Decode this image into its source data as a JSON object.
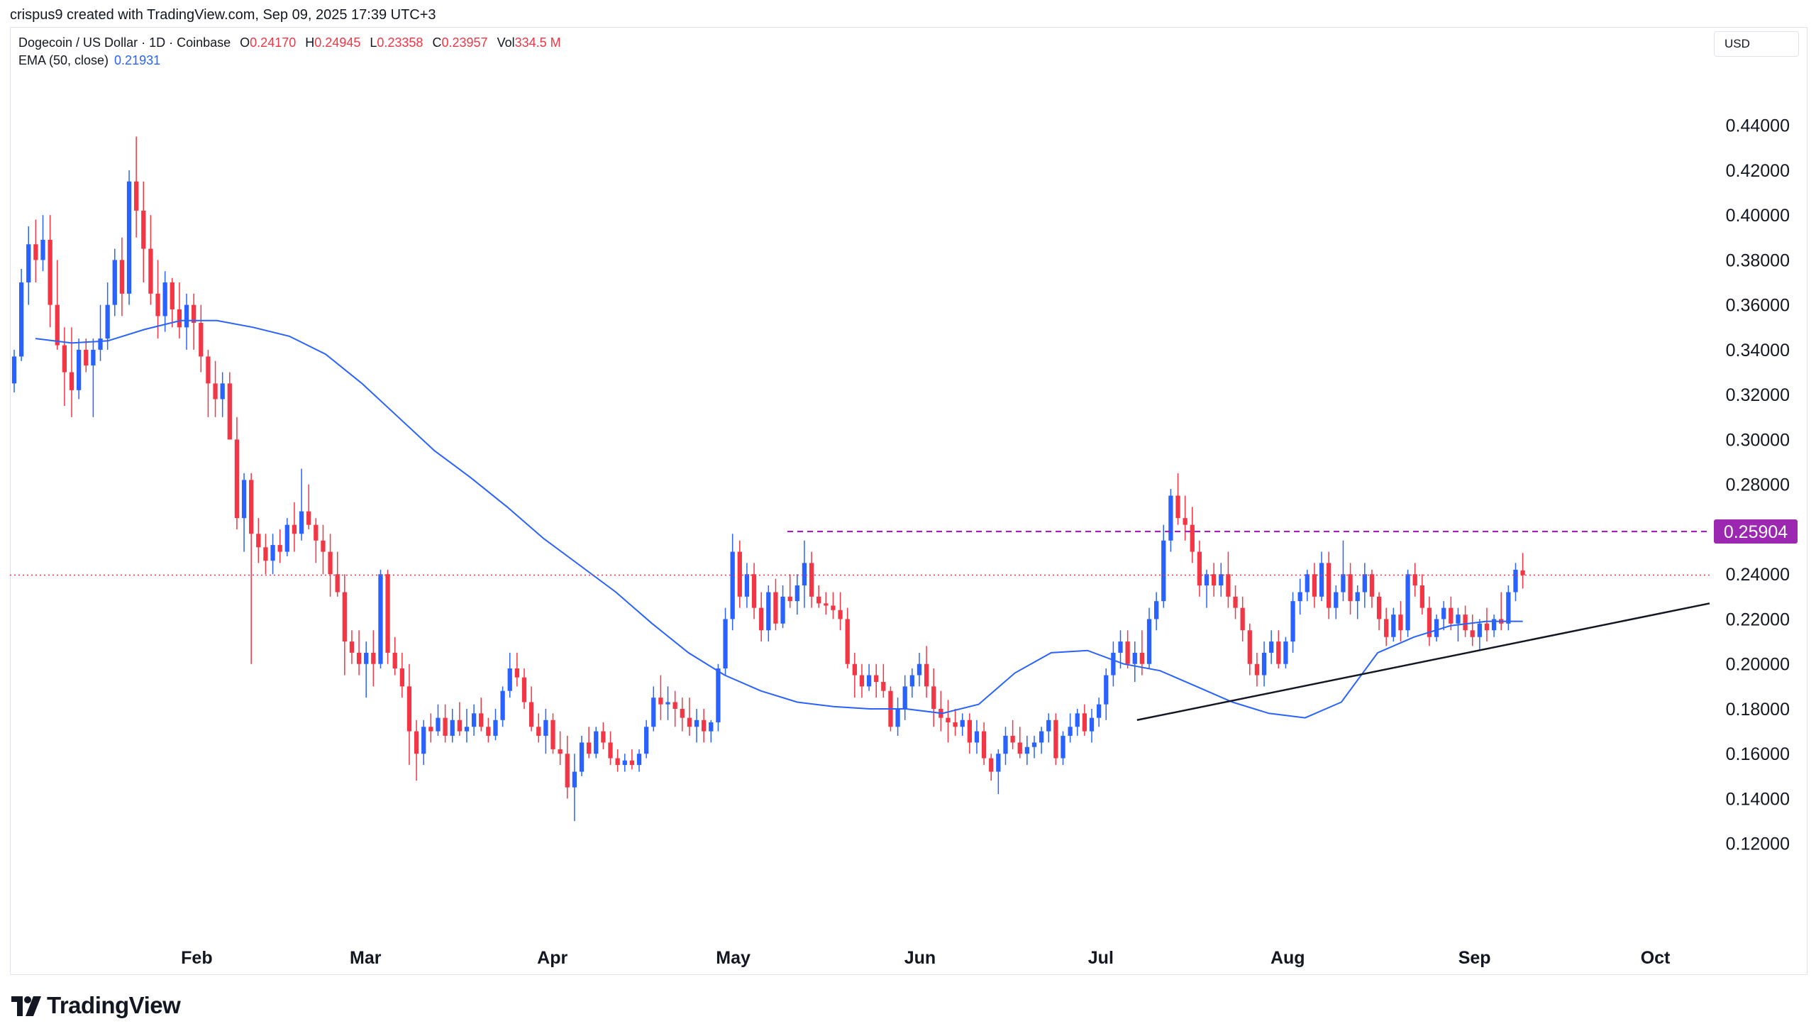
{
  "header": {
    "attribution": "crispus9 created with TradingView.com, Sep 09, 2025 17:39 UTC+3"
  },
  "legend": {
    "symbol": "Dogecoin / US Dollar · 1D · Coinbase",
    "open_label": "O",
    "open": "0.24170",
    "high_label": "H",
    "high": "0.24945",
    "low_label": "L",
    "low": "0.23358",
    "close_label": "C",
    "close": "0.23957",
    "vol_label": "Vol",
    "vol": "334.5 M",
    "ema_label": "EMA (50, close)",
    "ema_value": "0.21931"
  },
  "currency": "USD",
  "price_badge": "0.25904",
  "brand": {
    "logo_text": "TradingView",
    "logo_icon": "tradingview-logo-icon"
  },
  "colors": {
    "up": "#2962ff",
    "down": "#f23645",
    "ema": "#2962ff",
    "resistance": "#9c27b0",
    "badge": "#9c27b0",
    "trendline": "#131722",
    "last_price": "#f23645"
  },
  "chart_data": {
    "type": "candlestick",
    "title": "Dogecoin / US Dollar · 1D · Coinbase",
    "xlabel": "",
    "ylabel": "USD",
    "ylim": [
      0.1,
      0.45
    ],
    "y_ticks": [
      "0.44000",
      "0.42000",
      "0.40000",
      "0.38000",
      "0.36000",
      "0.34000",
      "0.32000",
      "0.30000",
      "0.28000",
      "0.26000",
      "0.24000",
      "0.22000",
      "0.20000",
      "0.18000",
      "0.16000",
      "0.14000",
      "0.12000"
    ],
    "x_ticks": [
      "Feb",
      "Mar",
      "Apr",
      "May",
      "Jun",
      "Jul",
      "Aug",
      "Sep",
      "Oct"
    ],
    "x_tick_dates": [
      "2025-02-01",
      "2025-03-01",
      "2025-04-01",
      "2025-05-01",
      "2025-06-01",
      "2025-07-01",
      "2025-08-01",
      "2025-09-01",
      "2025-10-01"
    ],
    "x_range": [
      "2025-01-01",
      "2025-10-10"
    ],
    "candle_dates": [
      "2025-01-01",
      "2025-09-09"
    ],
    "last_price": 0.23957,
    "resistance": {
      "price": 0.25904,
      "from": "2025-05-10",
      "to": "2025-10-10"
    },
    "trendline": {
      "from": [
        "2025-07-07",
        0.175
      ],
      "to": [
        "2025-10-10",
        0.227
      ]
    },
    "ema": [
      0.345,
      0.343,
      0.344,
      0.349,
      0.353,
      0.353,
      0.35,
      0.346,
      0.338,
      0.325,
      0.31,
      0.295,
      0.283,
      0.27,
      0.256,
      0.244,
      0.232,
      0.218,
      0.205,
      0.195,
      0.188,
      0.183,
      0.181,
      0.18,
      0.18,
      0.178,
      0.182,
      0.196,
      0.205,
      0.206,
      0.2,
      0.197,
      0.19,
      0.183,
      0.178,
      0.176,
      0.183,
      0.205,
      0.212,
      0.217,
      0.219,
      0.219
    ],
    "ohlc": [
      [
        0.325,
        0.34,
        0.321,
        0.337
      ],
      [
        0.337,
        0.376,
        0.335,
        0.37
      ],
      [
        0.37,
        0.395,
        0.36,
        0.387
      ],
      [
        0.387,
        0.398,
        0.37,
        0.38
      ],
      [
        0.38,
        0.4,
        0.375,
        0.389
      ],
      [
        0.389,
        0.4,
        0.35,
        0.36
      ],
      [
        0.36,
        0.38,
        0.34,
        0.342
      ],
      [
        0.342,
        0.35,
        0.315,
        0.33
      ],
      [
        0.33,
        0.35,
        0.31,
        0.322
      ],
      [
        0.322,
        0.345,
        0.318,
        0.34
      ],
      [
        0.34,
        0.345,
        0.33,
        0.333
      ],
      [
        0.333,
        0.345,
        0.31,
        0.34
      ],
      [
        0.34,
        0.36,
        0.335,
        0.345
      ],
      [
        0.345,
        0.37,
        0.34,
        0.36
      ],
      [
        0.36,
        0.385,
        0.355,
        0.38
      ],
      [
        0.38,
        0.39,
        0.355,
        0.365
      ],
      [
        0.365,
        0.42,
        0.36,
        0.415
      ],
      [
        0.415,
        0.435,
        0.39,
        0.402
      ],
      [
        0.402,
        0.415,
        0.37,
        0.385
      ],
      [
        0.385,
        0.4,
        0.36,
        0.365
      ],
      [
        0.365,
        0.38,
        0.345,
        0.355
      ],
      [
        0.355,
        0.375,
        0.348,
        0.37
      ],
      [
        0.37,
        0.372,
        0.35,
        0.358
      ],
      [
        0.358,
        0.37,
        0.345,
        0.35
      ],
      [
        0.35,
        0.365,
        0.34,
        0.36
      ],
      [
        0.36,
        0.365,
        0.34,
        0.352
      ],
      [
        0.352,
        0.36,
        0.33,
        0.337
      ],
      [
        0.337,
        0.34,
        0.31,
        0.325
      ],
      [
        0.325,
        0.335,
        0.31,
        0.318
      ],
      [
        0.318,
        0.33,
        0.31,
        0.325
      ],
      [
        0.325,
        0.33,
        0.3,
        0.3
      ],
      [
        0.3,
        0.31,
        0.26,
        0.265
      ],
      [
        0.265,
        0.285,
        0.25,
        0.282
      ],
      [
        0.282,
        0.285,
        0.2,
        0.258
      ],
      [
        0.258,
        0.265,
        0.245,
        0.252
      ],
      [
        0.252,
        0.258,
        0.24,
        0.246
      ],
      [
        0.246,
        0.258,
        0.24,
        0.253
      ],
      [
        0.253,
        0.26,
        0.245,
        0.25
      ],
      [
        0.25,
        0.265,
        0.248,
        0.262
      ],
      [
        0.262,
        0.272,
        0.25,
        0.258
      ],
      [
        0.258,
        0.287,
        0.255,
        0.268
      ],
      [
        0.268,
        0.28,
        0.26,
        0.262
      ],
      [
        0.262,
        0.265,
        0.245,
        0.255
      ],
      [
        0.255,
        0.262,
        0.24,
        0.25
      ],
      [
        0.25,
        0.258,
        0.23,
        0.24
      ],
      [
        0.24,
        0.25,
        0.23,
        0.232
      ],
      [
        0.232,
        0.24,
        0.195,
        0.21
      ],
      [
        0.21,
        0.215,
        0.2,
        0.205
      ],
      [
        0.205,
        0.215,
        0.195,
        0.2
      ],
      [
        0.2,
        0.21,
        0.185,
        0.205
      ],
      [
        0.205,
        0.215,
        0.19,
        0.2
      ],
      [
        0.2,
        0.242,
        0.198,
        0.24
      ],
      [
        0.24,
        0.242,
        0.2,
        0.205
      ],
      [
        0.205,
        0.212,
        0.195,
        0.198
      ],
      [
        0.198,
        0.205,
        0.185,
        0.19
      ],
      [
        0.19,
        0.2,
        0.155,
        0.17
      ],
      [
        0.17,
        0.175,
        0.148,
        0.16
      ],
      [
        0.16,
        0.175,
        0.155,
        0.172
      ],
      [
        0.172,
        0.178,
        0.165,
        0.17
      ],
      [
        0.17,
        0.182,
        0.168,
        0.176
      ],
      [
        0.176,
        0.182,
        0.165,
        0.168
      ],
      [
        0.168,
        0.18,
        0.165,
        0.175
      ],
      [
        0.175,
        0.183,
        0.168,
        0.17
      ],
      [
        0.17,
        0.18,
        0.165,
        0.172
      ],
      [
        0.172,
        0.182,
        0.168,
        0.178
      ],
      [
        0.178,
        0.185,
        0.17,
        0.172
      ],
      [
        0.172,
        0.176,
        0.165,
        0.168
      ],
      [
        0.168,
        0.18,
        0.166,
        0.175
      ],
      [
        0.175,
        0.19,
        0.172,
        0.188
      ],
      [
        0.188,
        0.205,
        0.185,
        0.198
      ],
      [
        0.198,
        0.205,
        0.19,
        0.194
      ],
      [
        0.194,
        0.198,
        0.18,
        0.183
      ],
      [
        0.183,
        0.19,
        0.17,
        0.172
      ],
      [
        0.172,
        0.178,
        0.165,
        0.168
      ],
      [
        0.168,
        0.18,
        0.16,
        0.175
      ],
      [
        0.175,
        0.178,
        0.16,
        0.162
      ],
      [
        0.162,
        0.17,
        0.155,
        0.16
      ],
      [
        0.16,
        0.168,
        0.14,
        0.145
      ],
      [
        0.145,
        0.16,
        0.13,
        0.152
      ],
      [
        0.152,
        0.168,
        0.15,
        0.165
      ],
      [
        0.165,
        0.172,
        0.158,
        0.16
      ],
      [
        0.16,
        0.172,
        0.158,
        0.17
      ],
      [
        0.17,
        0.174,
        0.162,
        0.165
      ],
      [
        0.165,
        0.17,
        0.155,
        0.158
      ],
      [
        0.158,
        0.162,
        0.152,
        0.155
      ],
      [
        0.155,
        0.16,
        0.152,
        0.157
      ],
      [
        0.157,
        0.162,
        0.153,
        0.155
      ],
      [
        0.155,
        0.162,
        0.152,
        0.16
      ],
      [
        0.16,
        0.175,
        0.158,
        0.172
      ],
      [
        0.172,
        0.19,
        0.17,
        0.185
      ],
      [
        0.185,
        0.195,
        0.175,
        0.182
      ],
      [
        0.182,
        0.19,
        0.175,
        0.183
      ],
      [
        0.183,
        0.188,
        0.172,
        0.18
      ],
      [
        0.18,
        0.185,
        0.17,
        0.176
      ],
      [
        0.176,
        0.185,
        0.168,
        0.172
      ],
      [
        0.172,
        0.18,
        0.165,
        0.175
      ],
      [
        0.175,
        0.18,
        0.165,
        0.17
      ],
      [
        0.17,
        0.175,
        0.165,
        0.174
      ],
      [
        0.174,
        0.2,
        0.17,
        0.198
      ],
      [
        0.198,
        0.225,
        0.195,
        0.22
      ],
      [
        0.22,
        0.258,
        0.215,
        0.25
      ],
      [
        0.25,
        0.255,
        0.225,
        0.23
      ],
      [
        0.23,
        0.245,
        0.225,
        0.24
      ],
      [
        0.24,
        0.245,
        0.22,
        0.225
      ],
      [
        0.225,
        0.232,
        0.21,
        0.215
      ],
      [
        0.215,
        0.235,
        0.21,
        0.232
      ],
      [
        0.232,
        0.238,
        0.215,
        0.218
      ],
      [
        0.218,
        0.235,
        0.216,
        0.23
      ],
      [
        0.23,
        0.24,
        0.225,
        0.228
      ],
      [
        0.228,
        0.24,
        0.222,
        0.235
      ],
      [
        0.235,
        0.255,
        0.225,
        0.245
      ],
      [
        0.245,
        0.25,
        0.225,
        0.23
      ],
      [
        0.23,
        0.235,
        0.225,
        0.227
      ],
      [
        0.227,
        0.232,
        0.222,
        0.226
      ],
      [
        0.226,
        0.232,
        0.22,
        0.224
      ],
      [
        0.224,
        0.232,
        0.215,
        0.22
      ],
      [
        0.22,
        0.225,
        0.198,
        0.2
      ],
      [
        0.2,
        0.205,
        0.185,
        0.195
      ],
      [
        0.195,
        0.2,
        0.185,
        0.19
      ],
      [
        0.19,
        0.2,
        0.188,
        0.195
      ],
      [
        0.195,
        0.2,
        0.185,
        0.192
      ],
      [
        0.192,
        0.2,
        0.185,
        0.188
      ],
      [
        0.188,
        0.19,
        0.17,
        0.172
      ],
      [
        0.172,
        0.185,
        0.168,
        0.18
      ],
      [
        0.18,
        0.195,
        0.175,
        0.19
      ],
      [
        0.19,
        0.198,
        0.185,
        0.195
      ],
      [
        0.195,
        0.205,
        0.19,
        0.2
      ],
      [
        0.2,
        0.208,
        0.185,
        0.19
      ],
      [
        0.19,
        0.198,
        0.172,
        0.18
      ],
      [
        0.18,
        0.188,
        0.17,
        0.176
      ],
      [
        0.176,
        0.184,
        0.165,
        0.174
      ],
      [
        0.174,
        0.18,
        0.168,
        0.172
      ],
      [
        0.172,
        0.178,
        0.168,
        0.175
      ],
      [
        0.175,
        0.178,
        0.16,
        0.165
      ],
      [
        0.165,
        0.175,
        0.16,
        0.17
      ],
      [
        0.17,
        0.174,
        0.155,
        0.158
      ],
      [
        0.158,
        0.16,
        0.148,
        0.152
      ],
      [
        0.152,
        0.162,
        0.142,
        0.16
      ],
      [
        0.16,
        0.172,
        0.155,
        0.168
      ],
      [
        0.168,
        0.175,
        0.162,
        0.165
      ],
      [
        0.165,
        0.172,
        0.158,
        0.16
      ],
      [
        0.16,
        0.168,
        0.155,
        0.163
      ],
      [
        0.163,
        0.168,
        0.158,
        0.165
      ],
      [
        0.165,
        0.172,
        0.16,
        0.17
      ],
      [
        0.17,
        0.178,
        0.165,
        0.175
      ],
      [
        0.175,
        0.178,
        0.155,
        0.158
      ],
      [
        0.158,
        0.17,
        0.155,
        0.168
      ],
      [
        0.168,
        0.178,
        0.165,
        0.172
      ],
      [
        0.172,
        0.18,
        0.168,
        0.178
      ],
      [
        0.178,
        0.182,
        0.168,
        0.17
      ],
      [
        0.17,
        0.18,
        0.165,
        0.176
      ],
      [
        0.176,
        0.185,
        0.172,
        0.182
      ],
      [
        0.182,
        0.198,
        0.175,
        0.195
      ],
      [
        0.195,
        0.21,
        0.19,
        0.205
      ],
      [
        0.205,
        0.215,
        0.198,
        0.21
      ],
      [
        0.21,
        0.215,
        0.198,
        0.2
      ],
      [
        0.2,
        0.21,
        0.192,
        0.205
      ],
      [
        0.205,
        0.215,
        0.195,
        0.2
      ],
      [
        0.2,
        0.225,
        0.198,
        0.22
      ],
      [
        0.22,
        0.232,
        0.215,
        0.228
      ],
      [
        0.228,
        0.262,
        0.225,
        0.255
      ],
      [
        0.255,
        0.278,
        0.25,
        0.275
      ],
      [
        0.275,
        0.285,
        0.262,
        0.265
      ],
      [
        0.265,
        0.275,
        0.255,
        0.262
      ],
      [
        0.262,
        0.27,
        0.245,
        0.25
      ],
      [
        0.25,
        0.255,
        0.23,
        0.235
      ],
      [
        0.235,
        0.242,
        0.225,
        0.24
      ],
      [
        0.24,
        0.245,
        0.23,
        0.235
      ],
      [
        0.235,
        0.245,
        0.23,
        0.24
      ],
      [
        0.24,
        0.25,
        0.225,
        0.23
      ],
      [
        0.23,
        0.235,
        0.22,
        0.225
      ],
      [
        0.225,
        0.23,
        0.21,
        0.215
      ],
      [
        0.215,
        0.218,
        0.195,
        0.2
      ],
      [
        0.2,
        0.205,
        0.19,
        0.195
      ],
      [
        0.195,
        0.21,
        0.19,
        0.205
      ],
      [
        0.205,
        0.215,
        0.2,
        0.21
      ],
      [
        0.21,
        0.215,
        0.198,
        0.2
      ],
      [
        0.2,
        0.212,
        0.198,
        0.21
      ],
      [
        0.21,
        0.232,
        0.205,
        0.228
      ],
      [
        0.228,
        0.238,
        0.222,
        0.232
      ],
      [
        0.232,
        0.242,
        0.228,
        0.24
      ],
      [
        0.24,
        0.245,
        0.225,
        0.23
      ],
      [
        0.23,
        0.25,
        0.228,
        0.245
      ],
      [
        0.245,
        0.25,
        0.22,
        0.225
      ],
      [
        0.225,
        0.235,
        0.22,
        0.232
      ],
      [
        0.232,
        0.255,
        0.228,
        0.24
      ],
      [
        0.24,
        0.245,
        0.222,
        0.228
      ],
      [
        0.228,
        0.235,
        0.22,
        0.232
      ],
      [
        0.232,
        0.245,
        0.225,
        0.24
      ],
      [
        0.24,
        0.242,
        0.225,
        0.23
      ],
      [
        0.23,
        0.232,
        0.215,
        0.22
      ],
      [
        0.22,
        0.225,
        0.208,
        0.212
      ],
      [
        0.212,
        0.225,
        0.21,
        0.222
      ],
      [
        0.222,
        0.228,
        0.21,
        0.215
      ],
      [
        0.215,
        0.242,
        0.212,
        0.24
      ],
      [
        0.24,
        0.245,
        0.23,
        0.235
      ],
      [
        0.235,
        0.24,
        0.222,
        0.225
      ],
      [
        0.225,
        0.23,
        0.208,
        0.212
      ],
      [
        0.212,
        0.222,
        0.21,
        0.22
      ],
      [
        0.22,
        0.228,
        0.215,
        0.225
      ],
      [
        0.225,
        0.23,
        0.215,
        0.218
      ],
      [
        0.218,
        0.225,
        0.21,
        0.222
      ],
      [
        0.222,
        0.226,
        0.212,
        0.215
      ],
      [
        0.215,
        0.222,
        0.208,
        0.212
      ],
      [
        0.212,
        0.22,
        0.206,
        0.218
      ],
      [
        0.218,
        0.225,
        0.21,
        0.215
      ],
      [
        0.215,
        0.222,
        0.212,
        0.22
      ],
      [
        0.22,
        0.232,
        0.215,
        0.218
      ],
      [
        0.218,
        0.235,
        0.215,
        0.232
      ],
      [
        0.232,
        0.245,
        0.228,
        0.242
      ],
      [
        0.2417,
        0.24945,
        0.23358,
        0.23957
      ]
    ]
  }
}
